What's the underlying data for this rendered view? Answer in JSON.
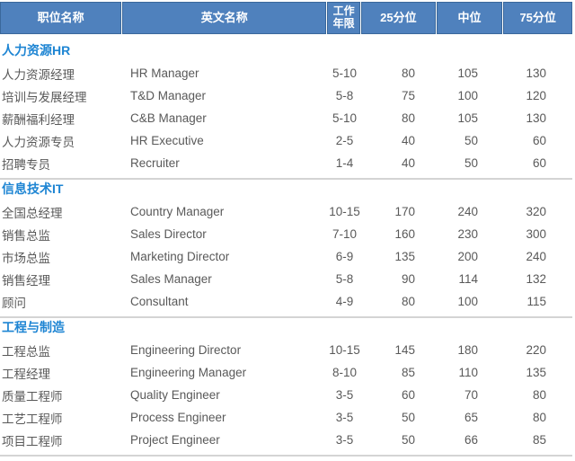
{
  "colors": {
    "header_background": "#4F81BD",
    "header_border": "#3A689B",
    "header_text": "#FFFFFF",
    "section_title_blue": "#1E85D3",
    "body_text_gray": "#595959",
    "divider_gray": "#D4D4D4"
  },
  "table": {
    "columns": [
      {
        "label": "职位名称"
      },
      {
        "label": "英文名称"
      },
      {
        "label": "工作\n年限"
      },
      {
        "label": "25分位"
      },
      {
        "label": "中位"
      },
      {
        "label": "75分位"
      }
    ],
    "sections": [
      {
        "title": "人力资源HR",
        "rows": [
          {
            "position_cn": "人力资源经理",
            "position_en": "HR Manager",
            "years": "5-10",
            "p25": "80",
            "median": "105",
            "p75": "130"
          },
          {
            "position_cn": "培训与发展经理",
            "position_en": "T&D Manager",
            "years": "5-8",
            "p25": "75",
            "median": "100",
            "p75": "120"
          },
          {
            "position_cn": "薪酬福利经理",
            "position_en": "C&B Manager",
            "years": "5-10",
            "p25": "80",
            "median": "105",
            "p75": "130"
          },
          {
            "position_cn": "人力资源专员",
            "position_en": "HR Executive",
            "years": "2-5",
            "p25": "40",
            "median": "50",
            "p75": "60"
          },
          {
            "position_cn": "招聘专员",
            "position_en": "Recruiter",
            "years": "1-4",
            "p25": "40",
            "median": "50",
            "p75": "60"
          }
        ]
      },
      {
        "title": "信息技术IT",
        "rows": [
          {
            "position_cn": "全国总经理",
            "position_en": "Country Manager",
            "years": "10-15",
            "p25": "170",
            "median": "240",
            "p75": "320"
          },
          {
            "position_cn": "销售总监",
            "position_en": "Sales Director",
            "years": "7-10",
            "p25": "160",
            "median": "230",
            "p75": "300"
          },
          {
            "position_cn": "市场总监",
            "position_en": "Marketing Director",
            "years": "6-9",
            "p25": "135",
            "median": "200",
            "p75": "240"
          },
          {
            "position_cn": "销售经理",
            "position_en": "Sales Manager",
            "years": "5-8",
            "p25": "90",
            "median": "114",
            "p75": "132"
          },
          {
            "position_cn": "顾问",
            "position_en": "Consultant",
            "years": "4-9",
            "p25": "80",
            "median": "100",
            "p75": "115"
          }
        ]
      },
      {
        "title": "工程与制造",
        "rows": [
          {
            "position_cn": "工程总监",
            "position_en": "Engineering Director",
            "years": "10-15",
            "p25": "145",
            "median": "180",
            "p75": "220"
          },
          {
            "position_cn": "工程经理",
            "position_en": "Engineering Manager",
            "years": "8-10",
            "p25": "85",
            "median": "110",
            "p75": "135"
          },
          {
            "position_cn": "质量工程师",
            "position_en": "Quality Engineer",
            "years": "3-5",
            "p25": "60",
            "median": "70",
            "p75": "80"
          },
          {
            "position_cn": "工艺工程师",
            "position_en": "Process Engineer",
            "years": "3-5",
            "p25": "50",
            "median": "65",
            "p75": "80"
          },
          {
            "position_cn": "项目工程师",
            "position_en": "Project Engineer",
            "years": "3-5",
            "p25": "50",
            "median": "66",
            "p75": "85"
          }
        ]
      }
    ]
  }
}
